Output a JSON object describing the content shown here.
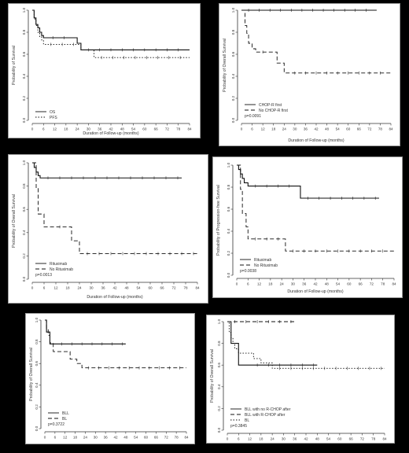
{
  "chart_data": [
    {
      "type": "line",
      "xlabel": "Duration of Follow-up (months)",
      "ylabel": "Probability of Survival",
      "xlim": [
        0,
        84
      ],
      "ylim": [
        0,
        1
      ],
      "xticks": [
        "0",
        "6",
        "12",
        "18",
        "24",
        "30",
        "36",
        "42",
        "48",
        "54",
        "60",
        "66",
        "72",
        "78",
        "84"
      ],
      "yticks": [
        "0.0",
        "0.2",
        "0.4",
        "0.6",
        "0.8",
        "1.0"
      ],
      "legend_position": "bottom-left",
      "pvalue": "",
      "series": [
        {
          "name": "OS",
          "style": "solid",
          "x": [
            0,
            1,
            2,
            3,
            4,
            5,
            6,
            7,
            24,
            26,
            84
          ],
          "y": [
            1.0,
            0.93,
            0.87,
            0.84,
            0.8,
            0.77,
            0.75,
            0.75,
            0.7,
            0.64,
            0.64
          ]
        },
        {
          "name": "PFS",
          "style": "dotted",
          "x": [
            0,
            1,
            2,
            3,
            4,
            5,
            6,
            24,
            26,
            30,
            33,
            84
          ],
          "y": [
            1.0,
            0.92,
            0.86,
            0.8,
            0.76,
            0.73,
            0.69,
            0.69,
            0.64,
            0.64,
            0.57,
            0.57
          ]
        }
      ]
    },
    {
      "type": "line",
      "xlabel": "Duration of Follow-up (months)",
      "ylabel": "Probability of Overall Survival",
      "xlim": [
        0,
        84
      ],
      "ylim": [
        0,
        1
      ],
      "xticks": [
        "0",
        "6",
        "12",
        "18",
        "24",
        "30",
        "36",
        "42",
        "48",
        "54",
        "60",
        "66",
        "72",
        "78",
        "84"
      ],
      "yticks": [
        "0.0",
        "0.2",
        "0.4",
        "0.6",
        "0.8",
        "1.0"
      ],
      "legend_position": "bottom-left",
      "pvalue": "p=0.0091",
      "series": [
        {
          "name": "CHOP-R first",
          "style": "solid",
          "x": [
            0,
            76
          ],
          "y": [
            1.0,
            1.0
          ]
        },
        {
          "name": "No CHOP-R first",
          "style": "dashed",
          "x": [
            0,
            2,
            3,
            4,
            6,
            8,
            16,
            20,
            22,
            24,
            26,
            84
          ],
          "y": [
            1.0,
            0.86,
            0.79,
            0.7,
            0.65,
            0.62,
            0.62,
            0.52,
            0.52,
            0.43,
            0.43,
            0.43
          ]
        }
      ]
    },
    {
      "type": "line",
      "xlabel": "Duration of Follow-up (months)",
      "ylabel": "Probability of Overall Survival",
      "xlim": [
        0,
        84
      ],
      "ylim": [
        0,
        1
      ],
      "xticks": [
        "0",
        "6",
        "12",
        "18",
        "24",
        "30",
        "36",
        "42",
        "48",
        "54",
        "60",
        "66",
        "72",
        "78",
        "84"
      ],
      "yticks": [
        "0.0",
        "0.2",
        "0.4",
        "0.6",
        "0.8",
        "1.0"
      ],
      "legend_position": "bottom-left",
      "pvalue": "p=0.0013",
      "series": [
        {
          "name": "Rituximab",
          "style": "solid",
          "x": [
            0,
            1,
            2,
            3,
            4,
            76
          ],
          "y": [
            1.0,
            0.96,
            0.92,
            0.89,
            0.87,
            0.87
          ]
        },
        {
          "name": "No Rituximab",
          "style": "dashed",
          "x": [
            0,
            2,
            3,
            6,
            10,
            20,
            22,
            24,
            84
          ],
          "y": [
            1.0,
            0.78,
            0.56,
            0.45,
            0.45,
            0.33,
            0.33,
            0.22,
            0.22
          ]
        }
      ]
    },
    {
      "type": "line",
      "xlabel": "Duration of Follow-up (months)",
      "ylabel": "Probability of Progression-free Survival",
      "xlim": [
        0,
        84
      ],
      "ylim": [
        0,
        1
      ],
      "xticks": [
        "0",
        "6",
        "12",
        "18",
        "24",
        "30",
        "36",
        "42",
        "48",
        "54",
        "60",
        "66",
        "72",
        "78",
        "84"
      ],
      "yticks": [
        "0.0",
        "0.2",
        "0.4",
        "0.6",
        "0.8",
        "1.0"
      ],
      "legend_position": "bottom-left",
      "pvalue": "p=0.0038",
      "series": [
        {
          "name": "Rituximab",
          "style": "solid",
          "x": [
            0,
            1,
            2,
            3,
            4,
            6,
            32,
            34,
            76
          ],
          "y": [
            1.0,
            0.96,
            0.92,
            0.88,
            0.84,
            0.81,
            0.81,
            0.7,
            0.7
          ]
        },
        {
          "name": "No Rituximab",
          "style": "dashed",
          "x": [
            0,
            2,
            3,
            5,
            6,
            24,
            26,
            84
          ],
          "y": [
            1.0,
            0.78,
            0.56,
            0.44,
            0.33,
            0.33,
            0.22,
            0.22
          ]
        }
      ]
    },
    {
      "type": "line",
      "xlabel": "",
      "ylabel": "Probability of Overall Survival",
      "xlim": [
        0,
        84
      ],
      "ylim": [
        0,
        1
      ],
      "xticks": [
        "0",
        "6",
        "12",
        "18",
        "24",
        "30",
        "36",
        "42",
        "48",
        "54",
        "60",
        "66",
        "72",
        "78",
        "84"
      ],
      "yticks": [
        "0.0",
        "0.2",
        "0.4",
        "0.6",
        "0.8",
        "1.0"
      ],
      "legend_position": "bottom-left",
      "pvalue": "p=0.3722",
      "series": [
        {
          "name": "BLL",
          "style": "solid",
          "x": [
            0,
            1,
            3,
            6,
            48
          ],
          "y": [
            1.0,
            0.89,
            0.78,
            0.78,
            0.78
          ]
        },
        {
          "name": "BL",
          "style": "dashed",
          "x": [
            0,
            1,
            2,
            3,
            5,
            12,
            15,
            18,
            19,
            20,
            22,
            84
          ],
          "y": [
            1.0,
            0.92,
            0.86,
            0.79,
            0.71,
            0.71,
            0.64,
            0.64,
            0.6,
            0.6,
            0.56,
            0.56
          ]
        }
      ]
    },
    {
      "type": "line",
      "xlabel": "",
      "ylabel": "Probability of Overall Survival",
      "xlim": [
        0,
        84
      ],
      "ylim": [
        0,
        1
      ],
      "xticks": [
        "0",
        "6",
        "12",
        "18",
        "24",
        "30",
        "36",
        "42",
        "48",
        "54",
        "60",
        "66",
        "72",
        "78",
        "84"
      ],
      "yticks": [
        "0.0",
        "0.2",
        "0.4",
        "0.6",
        "0.8",
        "1.0"
      ],
      "legend_position": "bottom-left",
      "pvalue": "p=0.3845",
      "series": [
        {
          "name": "BLL with no R-CHOP after",
          "style": "solid",
          "x": [
            0,
            2,
            3,
            6,
            12,
            48
          ],
          "y": [
            1.0,
            0.8,
            0.8,
            0.6,
            0.6,
            0.6
          ]
        },
        {
          "name": "BLL with R-CHOP after",
          "style": "dashed",
          "x": [
            0,
            36
          ],
          "y": [
            1.0,
            1.0
          ]
        },
        {
          "name": "BL",
          "style": "dotted",
          "x": [
            0,
            1,
            2,
            3,
            4,
            6,
            12,
            14,
            18,
            22,
            24,
            84
          ],
          "y": [
            1.0,
            0.9,
            0.85,
            0.8,
            0.75,
            0.71,
            0.71,
            0.66,
            0.62,
            0.62,
            0.57,
            0.57
          ]
        }
      ]
    }
  ]
}
